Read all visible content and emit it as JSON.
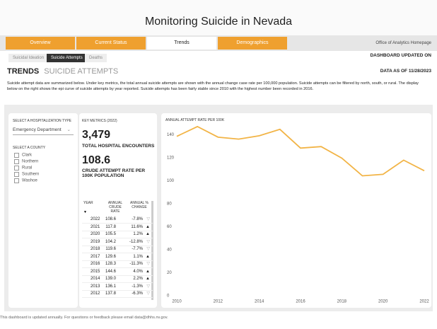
{
  "header": {
    "title": "Monitoring Suicide in Nevada",
    "updated": "DASHBOARD UPDATED ON"
  },
  "tabs": [
    "Overview",
    "Current Status",
    "Trends",
    "Demographics",
    "Office of Analytics Homepage"
  ],
  "subtabs": [
    "Suicidal Ideation",
    "Suicide Attempts",
    "Deaths"
  ],
  "section": {
    "title": "TRENDS",
    "subtitle": "SUICIDE ATTEMPTS",
    "data_as_of": "DATA AS OF 11/28/2023",
    "description": "Suicide attempt data are summarized below. Under key metrics, the total annual suicide attempts are shown with the annual change case rate per 100,000 population. Suicide attempts can be filtered by north, south, or rural. The display below on the right shows the epi curve of suicide attempts by year reported. Suicide attempts has been fairly stable since 2010 with the highest number been recorded in 2016."
  },
  "filters": {
    "type_label": "SELECT A HOSPITALIZATION TYPE",
    "type_value": "Emergency Department",
    "county_label": "SELECT A COUNTY",
    "counties": [
      "Clark",
      "Northern",
      "Rural",
      "Southern",
      "Washoe"
    ]
  },
  "metrics": {
    "label": "KEY METRICS (2022)",
    "encounters": "3,479",
    "encounters_label": "TOTAL HOSPITAL ENCOUNTERS",
    "rate": "108.6",
    "rate_label": "CRUDE ATTEMPT RATE PER 100K POPULATION"
  },
  "table": {
    "header": [
      "YEAR",
      "ANNUAL CRUDE RATE",
      "ANNUAL % CHANGE"
    ],
    "rows": [
      [
        "2022",
        "108.6",
        "-7.8%"
      ],
      [
        "2021",
        "117.8",
        "11.6%"
      ],
      [
        "2020",
        "105.5",
        "1.2%"
      ],
      [
        "2019",
        "104.2",
        "-12.8%"
      ],
      [
        "2018",
        "119.6",
        "-7.7%"
      ],
      [
        "2017",
        "129.6",
        "1.1%"
      ],
      [
        "2016",
        "128.3",
        "-11.3%"
      ],
      [
        "2015",
        "144.6",
        "4.0%"
      ],
      [
        "2014",
        "139.0",
        "2.2%"
      ],
      [
        "2013",
        "136.1",
        "-1.3%"
      ],
      [
        "2012",
        "137.8",
        "-6.3%"
      ]
    ]
  },
  "chart_data": {
    "type": "line",
    "title": "ANNUAL ATTEMPT RATE PER 100K",
    "x": [
      2010,
      2011,
      2012,
      2013,
      2014,
      2015,
      2016,
      2017,
      2018,
      2019,
      2020,
      2021,
      2022
    ],
    "series": [
      {
        "name": "Annual attempt rate",
        "color": "#f2b446",
        "values": [
          138.5,
          147,
          137.8,
          136.1,
          139.0,
          144.6,
          128.3,
          129.6,
          119.6,
          104.2,
          105.5,
          117.8,
          108.6
        ]
      }
    ],
    "xlim": [
      2010,
      2022
    ],
    "xticks": [
      2010,
      2012,
      2014,
      2016,
      2018,
      2020,
      2022
    ],
    "ylim": [
      0,
      150
    ],
    "yticks": [
      0,
      20,
      40,
      60,
      80,
      100,
      120,
      140
    ],
    "grid": false
  },
  "footer": "This dashboard is updated annually. For questions or feedback please email data@dhhs.nv.gov."
}
